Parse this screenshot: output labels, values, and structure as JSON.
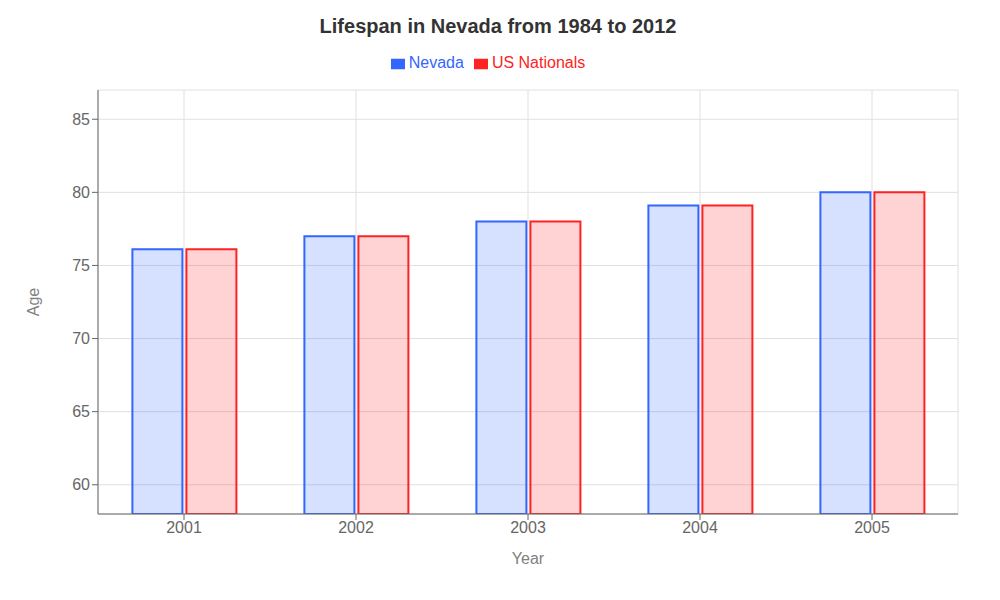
{
  "chart_data": {
    "type": "bar",
    "title": "Lifespan in Nevada from 1984 to 2012",
    "xlabel": "Year",
    "ylabel": "Age",
    "categories": [
      "2001",
      "2002",
      "2003",
      "2004",
      "2005"
    ],
    "series": [
      {
        "name": "Nevada",
        "color": "#3366ff",
        "values": [
          76.1,
          77.0,
          78.0,
          79.1,
          80.0
        ]
      },
      {
        "name": "US Nationals",
        "color": "#ff2222",
        "values": [
          76.1,
          77.0,
          78.0,
          79.1,
          80.0
        ]
      }
    ],
    "ylim": [
      58,
      87
    ],
    "yticks": [
      60,
      65,
      70,
      75,
      80,
      85
    ],
    "grid": true,
    "legend": "top"
  }
}
